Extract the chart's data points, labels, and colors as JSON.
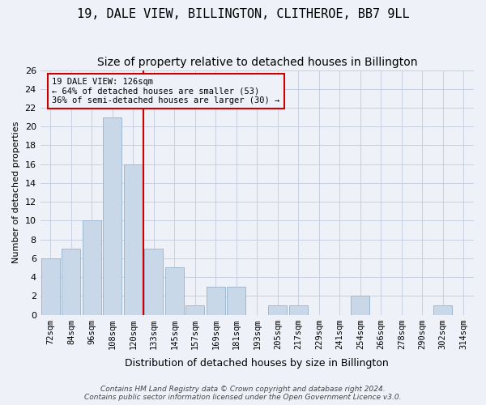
{
  "title": "19, DALE VIEW, BILLINGTON, CLITHEROE, BB7 9LL",
  "subtitle": "Size of property relative to detached houses in Billington",
  "xlabel": "Distribution of detached houses by size in Billington",
  "ylabel": "Number of detached properties",
  "bins": [
    "72sqm",
    "84sqm",
    "96sqm",
    "108sqm",
    "120sqm",
    "133sqm",
    "145sqm",
    "157sqm",
    "169sqm",
    "181sqm",
    "193sqm",
    "205sqm",
    "217sqm",
    "229sqm",
    "241sqm",
    "254sqm",
    "266sqm",
    "278sqm",
    "290sqm",
    "302sqm",
    "314sqm"
  ],
  "values": [
    6,
    7,
    10,
    21,
    16,
    7,
    5,
    1,
    3,
    3,
    0,
    1,
    1,
    0,
    0,
    2,
    0,
    0,
    0,
    1,
    0
  ],
  "bar_color": "#c8d8e8",
  "bar_edge_color": "#a0b8d0",
  "grid_color": "#c8d0e0",
  "background_color": "#eef2f8",
  "vline_x_index": 4.5,
  "vline_color": "#cc0000",
  "annotation_text": "19 DALE VIEW: 126sqm\n← 64% of detached houses are smaller (53)\n36% of semi-detached houses are larger (30) →",
  "annotation_box_color": "#cc0000",
  "ylim": [
    0,
    26
  ],
  "yticks": [
    0,
    2,
    4,
    6,
    8,
    10,
    12,
    14,
    16,
    18,
    20,
    22,
    24,
    26
  ],
  "footer": "Contains HM Land Registry data © Crown copyright and database right 2024.\nContains public sector information licensed under the Open Government Licence v3.0.",
  "title_fontsize": 11,
  "subtitle_fontsize": 10
}
